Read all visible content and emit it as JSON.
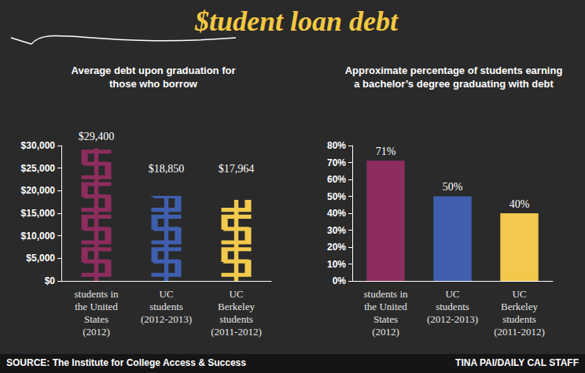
{
  "title": "$tudent loan debt",
  "source": "SOURCE: The Institute for College Access & Success",
  "credit": "TINA PAI/DAILY CAL STAFF",
  "chart_data": [
    {
      "type": "bar",
      "title": "Average debt upon graduation for\nthose who borrow",
      "categories": [
        "students in\nthe United\nStates\n(2012)",
        "UC\nstudents\n(2012-2013)",
        "UC\nBerkeley\nstudents\n(2011-2012)"
      ],
      "values": [
        29400,
        18850,
        17964
      ],
      "value_labels": [
        "$29,400",
        "$18,850",
        "$17,964"
      ],
      "colors": [
        "#8c2d5e",
        "#3f5fae",
        "#f2c94c"
      ],
      "marker": "dollar",
      "ylim": [
        0,
        30000
      ],
      "yticks": [
        {
          "value": 0,
          "label": "$0"
        },
        {
          "value": 5000,
          "label": "$5,000"
        },
        {
          "value": 10000,
          "label": "$10,000"
        },
        {
          "value": 15000,
          "label": "$15,000"
        },
        {
          "value": 20000,
          "label": "$20,000"
        },
        {
          "value": 25000,
          "label": "$25,000"
        },
        {
          "value": 30000,
          "label": "$30,000"
        }
      ],
      "grid": false,
      "data_labels": true
    },
    {
      "type": "bar",
      "title": "Approximate percentage of students earning\na bachelor’s degree graduating with debt",
      "categories": [
        "students in\nthe United\nStates\n(2012)",
        "UC\nstudents\n(2012-2013)",
        "UC\nBerkeley\nstudents\n(2011-2012)"
      ],
      "values": [
        71,
        50,
        40
      ],
      "value_labels": [
        "71%",
        "50%",
        "40%"
      ],
      "colors": [
        "#8c2d5e",
        "#3f5fae",
        "#f2c94c"
      ],
      "ylim": [
        0,
        80
      ],
      "yticks": [
        {
          "value": 0,
          "label": "0%"
        },
        {
          "value": 10,
          "label": "10%"
        },
        {
          "value": 20,
          "label": "20%"
        },
        {
          "value": 30,
          "label": "30%"
        },
        {
          "value": 40,
          "label": "40%"
        },
        {
          "value": 50,
          "label": "50%"
        },
        {
          "value": 60,
          "label": "60%"
        },
        {
          "value": 70,
          "label": "70%"
        },
        {
          "value": 80,
          "label": "80%"
        }
      ],
      "grid": false,
      "data_labels": true
    }
  ]
}
